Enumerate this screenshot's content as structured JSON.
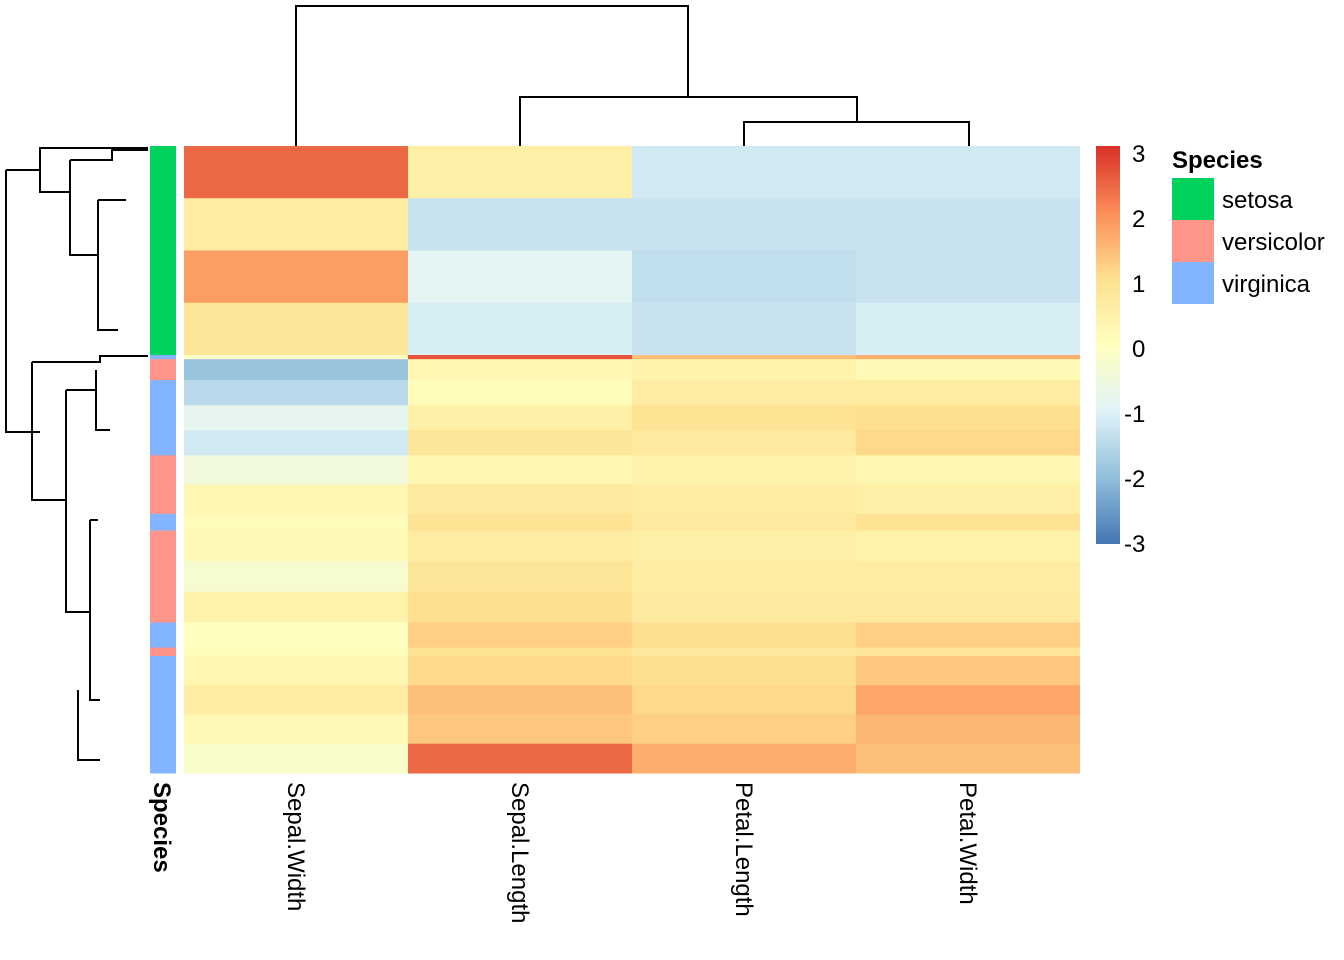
{
  "chart_data": {
    "type": "heatmap",
    "columns": [
      "Sepal.Width",
      "Sepal.Length",
      "Petal.Length",
      "Petal.Width"
    ],
    "annotation_title": "Species",
    "colorbar": {
      "ticks": [
        3,
        2,
        1,
        0,
        -1,
        -2,
        -3
      ],
      "range": [
        -3,
        3
      ],
      "colors": [
        "#4575b4",
        "#91bfdb",
        "#e0f3f8",
        "#ffffbf",
        "#fee090",
        "#fc8d59",
        "#d73027"
      ]
    },
    "legend": {
      "title": "Species",
      "entries": [
        {
          "label": "setosa",
          "color": "#00d35c"
        },
        {
          "label": "versicolor",
          "color": "#ff9488"
        },
        {
          "label": "virginica",
          "color": "#82b4ff"
        }
      ]
    },
    "row_groups": [
      {
        "species": "setosa",
        "count": 50,
        "values": [
          [
            2.4,
            0.5,
            -1.2,
            -1.2
          ],
          [
            0.6,
            -1.3,
            -1.3,
            -1.3
          ],
          [
            1.8,
            -0.9,
            -1.4,
            -1.3
          ],
          [
            0.8,
            -1.1,
            -1.3,
            -1.1
          ]
        ]
      },
      {
        "species": "virginica",
        "count": 1,
        "values": [
          [
            -0.1,
            2.6,
            1.4,
            1.6
          ]
        ]
      },
      {
        "species": "versicolor",
        "count": 5,
        "values": [
          [
            -1.9,
            0.3,
            0.4,
            0.2
          ]
        ]
      },
      {
        "species": "virginica",
        "count": 18,
        "values": [
          [
            -1.5,
            0.1,
            0.6,
            0.6
          ],
          [
            -0.8,
            0.5,
            0.9,
            1.0
          ],
          [
            -1.2,
            0.8,
            0.7,
            1.1
          ]
        ]
      },
      {
        "species": "versicolor",
        "count": 14,
        "values": [
          [
            -0.5,
            0.3,
            0.4,
            0.3
          ],
          [
            0.3,
            0.7,
            0.6,
            0.5
          ]
        ]
      },
      {
        "species": "virginica",
        "count": 4,
        "values": [
          [
            0.1,
            0.9,
            0.7,
            0.9
          ]
        ]
      },
      {
        "species": "versicolor",
        "count": 22,
        "values": [
          [
            0.2,
            0.6,
            0.5,
            0.4
          ],
          [
            -0.3,
            0.8,
            0.6,
            0.6
          ],
          [
            0.4,
            1.0,
            0.7,
            0.7
          ]
        ]
      },
      {
        "species": "virginica",
        "count": 6,
        "values": [
          [
            0.0,
            1.2,
            1.0,
            1.2
          ]
        ]
      },
      {
        "species": "versicolor",
        "count": 2,
        "values": [
          [
            0.1,
            0.9,
            0.7,
            0.8
          ]
        ]
      },
      {
        "species": "virginica",
        "count": 28,
        "values": [
          [
            0.3,
            1.1,
            1.0,
            1.3
          ],
          [
            0.6,
            1.4,
            1.1,
            1.7
          ],
          [
            0.2,
            1.3,
            1.2,
            1.5
          ],
          [
            -0.2,
            2.4,
            1.6,
            1.4
          ]
        ]
      }
    ]
  }
}
